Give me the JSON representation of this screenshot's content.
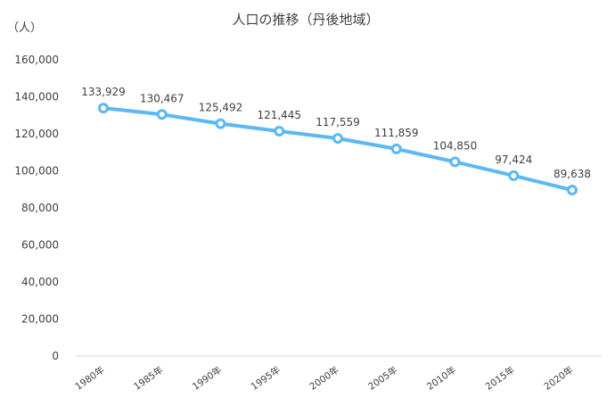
{
  "chart_data": {
    "type": "line",
    "title": "人口の推移（丹後地域）",
    "unit_label": "（人）",
    "categories": [
      "1980年",
      "1985年",
      "1990年",
      "1995年",
      "2000年",
      "2005年",
      "2010年",
      "2015年",
      "2020年"
    ],
    "series": [
      {
        "values": [
          133929,
          130467,
          125492,
          121445,
          117559,
          111859,
          104850,
          97424,
          89638
        ]
      }
    ],
    "data_labels": [
      "133,929",
      "130,467",
      "125,492",
      "121,445",
      "117,559",
      "111,859",
      "104,850",
      "97,424",
      "89,638"
    ],
    "y_ticks": [
      "0",
      "20,000",
      "40,000",
      "60,000",
      "80,000",
      "100,000",
      "120,000",
      "140,000",
      "160,000"
    ],
    "ylim": [
      0,
      160000
    ],
    "grid": false,
    "legend": "none",
    "line_color": "#5BB8F5",
    "marker_fill": "#ffffff"
  }
}
